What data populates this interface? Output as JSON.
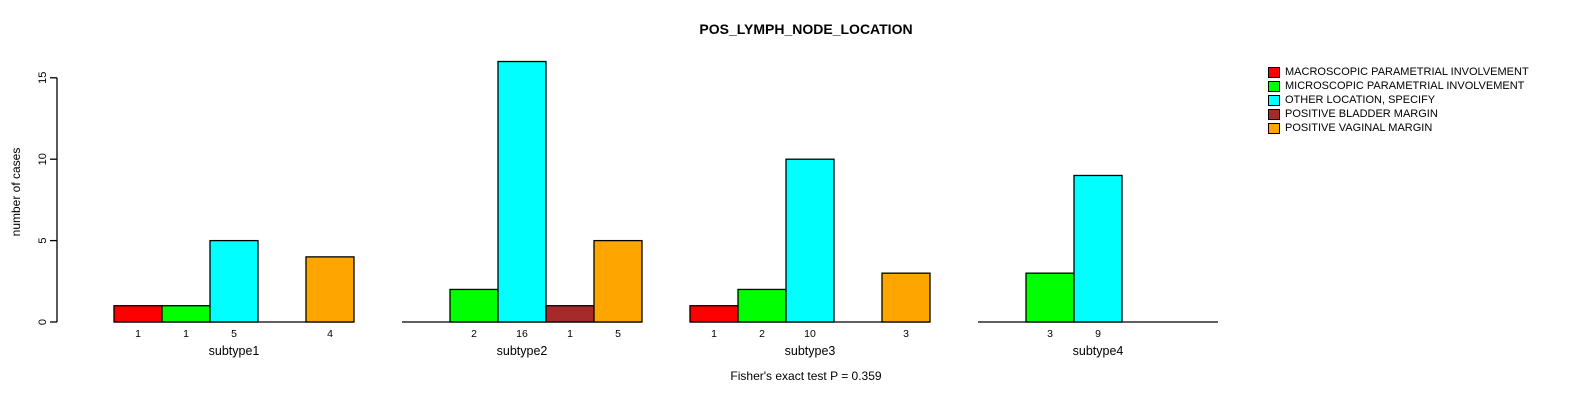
{
  "chart_data": {
    "type": "bar",
    "title": "POS_LYMPH_NODE_LOCATION",
    "xlabel": "",
    "ylabel": "number of cases",
    "categories": [
      "subtype1",
      "subtype2",
      "subtype3",
      "subtype4"
    ],
    "series": [
      {
        "name": "MACROSCOPIC PARAMETRIAL INVOLVEMENT",
        "color": "#FF0000",
        "values": [
          1,
          0,
          1,
          0
        ]
      },
      {
        "name": "MICROSCOPIC PARAMETRIAL INVOLVEMENT",
        "color": "#00FF00",
        "values": [
          1,
          2,
          2,
          3
        ]
      },
      {
        "name": "OTHER LOCATION, SPECIFY",
        "color": "#00FFFF",
        "values": [
          5,
          16,
          10,
          9
        ]
      },
      {
        "name": "POSITIVE BLADDER MARGIN",
        "color": "#A52A2A",
        "values": [
          0,
          1,
          0,
          0
        ]
      },
      {
        "name": "POSITIVE VAGINAL MARGIN",
        "color": "#FFA500",
        "values": [
          4,
          5,
          3,
          0
        ]
      }
    ],
    "yticks": [
      0,
      5,
      10,
      15
    ],
    "ylim": [
      0,
      16
    ],
    "grid": false,
    "bar_value_labels_shown": true,
    "legend_position": "right",
    "annotation": "Fisher's exact test P = 0.359"
  }
}
